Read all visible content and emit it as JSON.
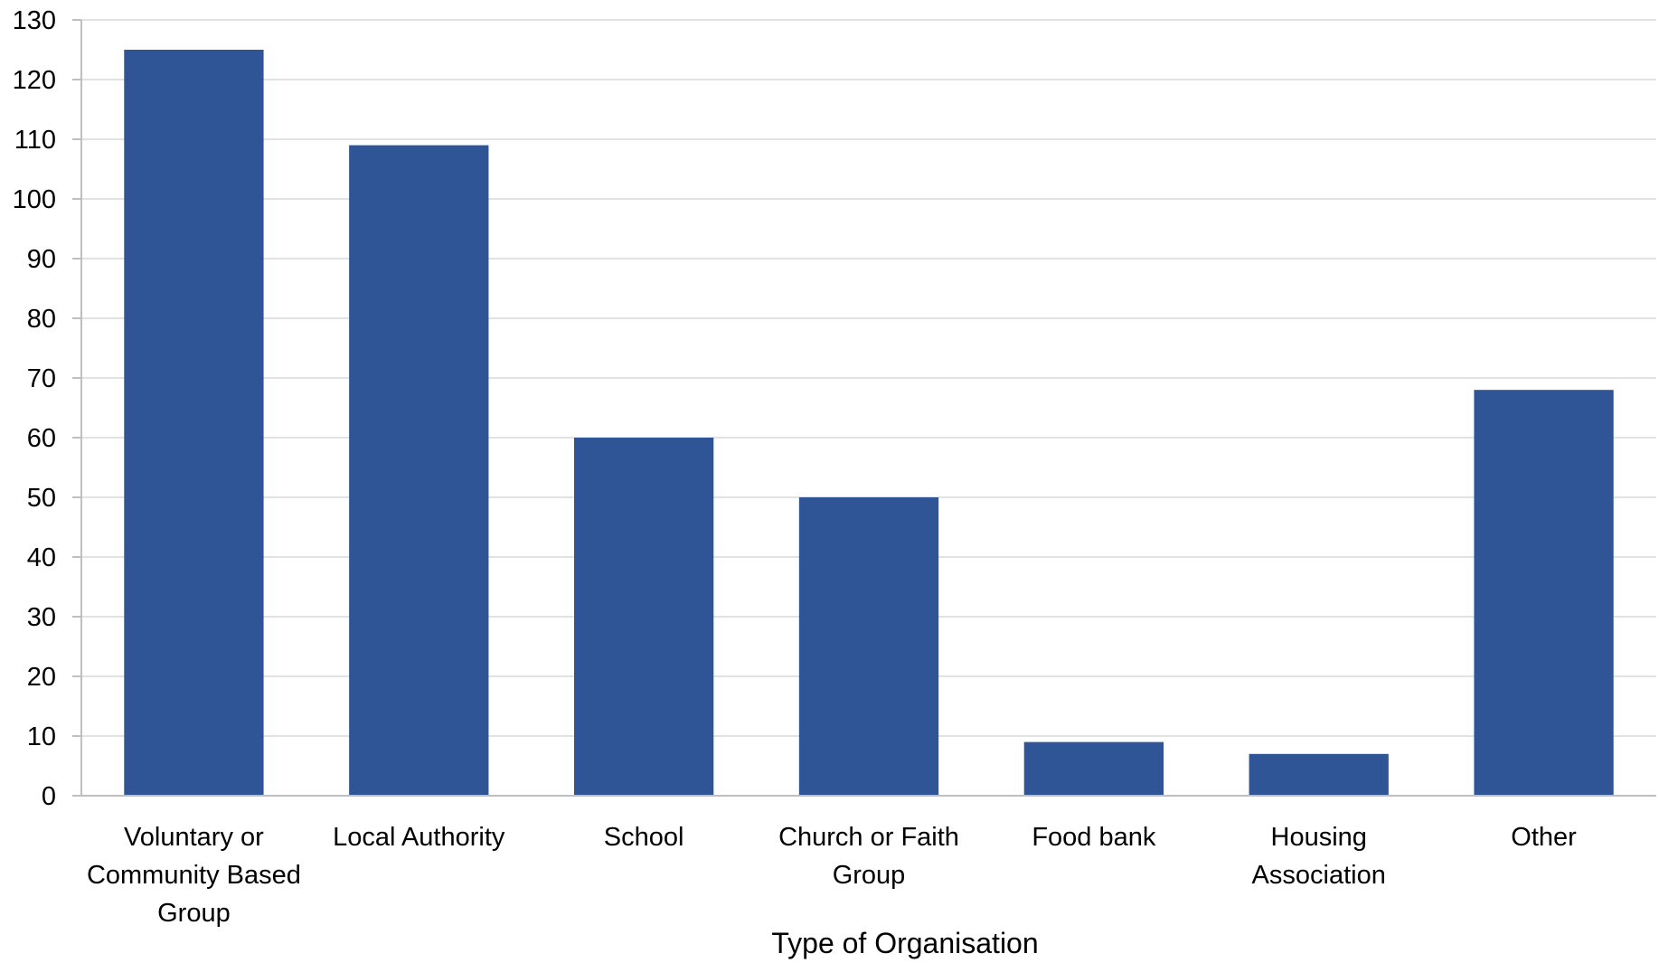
{
  "chart_data": {
    "type": "bar",
    "title": "",
    "xlabel": "Type of Organisation",
    "ylabel": "",
    "categories": [
      "Voluntary or Community Based Group",
      "Local Authority",
      "School",
      "Church or Faith Group",
      "Food bank",
      "Housing Association",
      "Other"
    ],
    "category_lines": [
      [
        "Voluntary or",
        "Community Based",
        "Group"
      ],
      [
        "Local Authority"
      ],
      [
        "School"
      ],
      [
        "Church or Faith",
        "Group"
      ],
      [
        "Food bank"
      ],
      [
        "Housing",
        "Association"
      ],
      [
        "Other"
      ]
    ],
    "values": [
      125,
      109,
      60,
      50,
      9,
      7,
      68
    ],
    "ylim": [
      0,
      130
    ],
    "yticks": [
      0,
      10,
      20,
      30,
      40,
      50,
      60,
      70,
      80,
      90,
      100,
      110,
      120,
      130
    ],
    "grid": true,
    "legend": "none",
    "colors": {
      "bar": "#2f5597",
      "grid": "#d9d9d9",
      "axis": "#bfbfbf",
      "text": "#000000"
    }
  }
}
